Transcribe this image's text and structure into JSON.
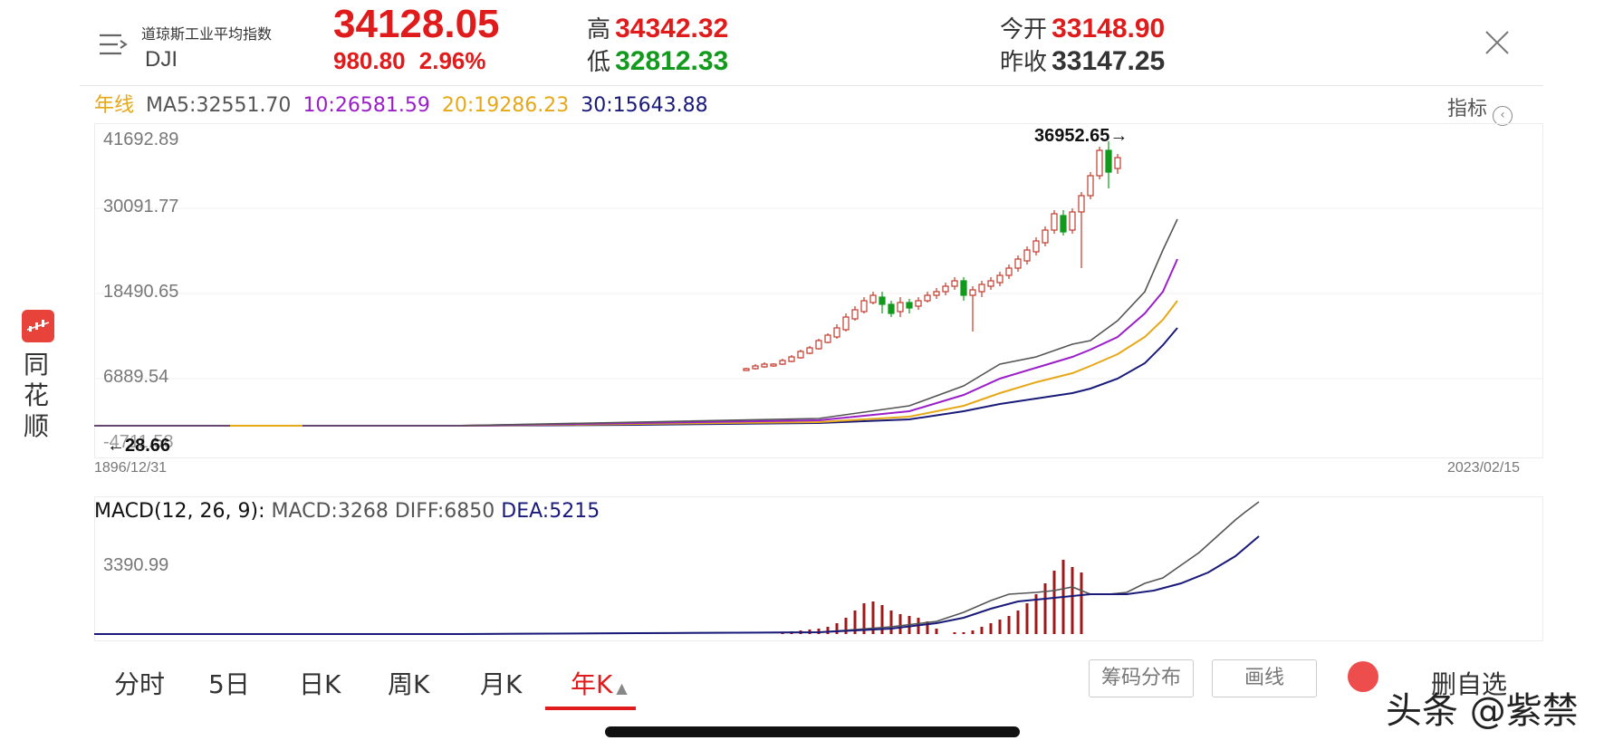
{
  "header": {
    "index_name": "道琼斯工业平均指数",
    "index_code": "DJI",
    "price": "34128.05",
    "change": "980.80",
    "change_pct": "2.96%",
    "high_label": "高",
    "high_value": "34342.32",
    "low_label": "低",
    "low_value": "32812.33",
    "open_label": "今开",
    "open_value": "33148.90",
    "prev_close_label": "昨收",
    "prev_close_value": "33147.25",
    "icons": {
      "menu": "menu-icon",
      "close": "close-icon"
    }
  },
  "ma": {
    "period_label": "年线",
    "ma5": "MA5:32551.70",
    "ma10": "10:26581.59",
    "ma20": "20:19286.23",
    "ma30": "30:15643.88",
    "indicator_label": "指标",
    "colors": {
      "period": "#e6a817",
      "ma5": "#555555",
      "ma10": "#9b1fc8",
      "ma20": "#e6a817",
      "ma30": "#1a1a7a"
    }
  },
  "main_chart": {
    "y_ticks": [
      "41692.89",
      "30091.77",
      "18490.65",
      "6889.54",
      "-4711.58"
    ],
    "max_label": "36952.65→",
    "min_label": "←28.66",
    "start_date": "1896/12/31",
    "end_date": "2023/02/15"
  },
  "macd": {
    "title": "MACD(12, 26, 9):",
    "macd": "MACD:3268",
    "diff": "DIFF:6850",
    "dea": "DEA:5215",
    "y_tick": "3390.99"
  },
  "app": {
    "name": "同花顺"
  },
  "tabs": [
    "分时",
    "5日",
    "日K",
    "周K",
    "月K",
    "年K"
  ],
  "active_tab": "年K",
  "tools": {
    "chips": "筹码分布",
    "draw": "画线",
    "delete_fav": "删自选"
  },
  "watermark": "头条 @紫禁",
  "colors": {
    "up": "#e01b1b",
    "down": "#119a1b",
    "accent": "#e01b1b"
  }
}
